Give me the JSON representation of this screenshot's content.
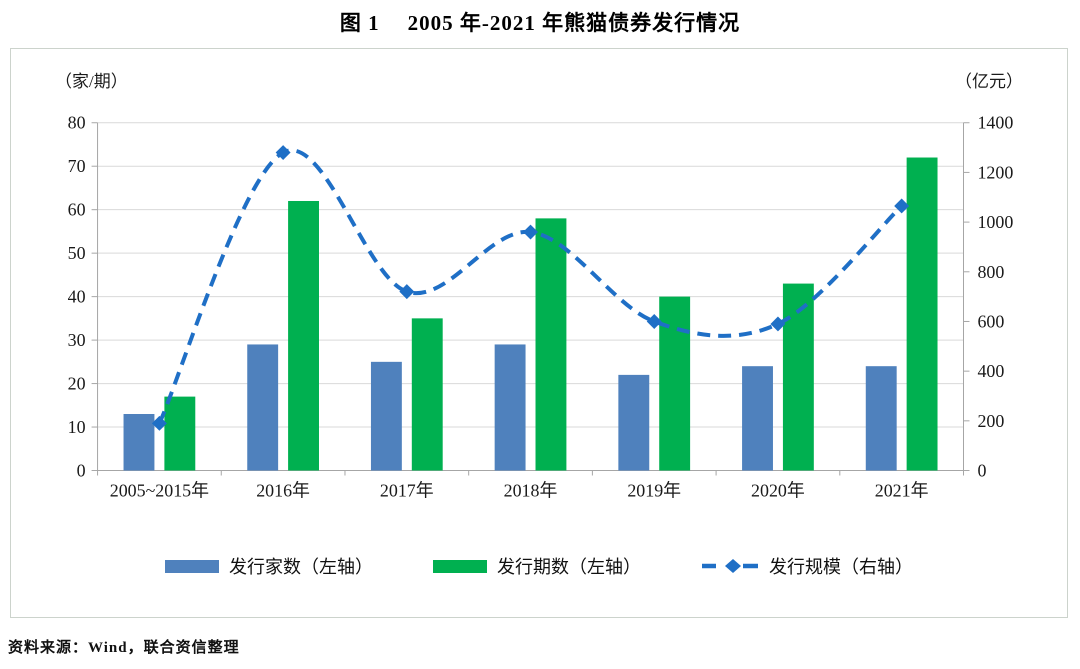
{
  "title": {
    "label": "图 1",
    "text": "2005 年-2021 年熊猫债券发行情况"
  },
  "footer": {
    "source": "资料来源：Wind，联合资信整理"
  },
  "legend": [
    {
      "label": "发行家数（左轴）",
      "type": "bar",
      "color": "#4F81BD"
    },
    {
      "label": "发行期数（左轴）",
      "type": "bar",
      "color": "#00B050"
    },
    {
      "label": "发行规模（右轴）",
      "type": "line",
      "color": "#1F6FC6"
    }
  ],
  "colors": {
    "bar_issuers": "#4F81BD",
    "bar_issues": "#00B050",
    "line_scale": "#1F6FC6",
    "gridline": "#D9D9D9",
    "axis": "#A6A6A6",
    "tick_text": "#1a1a1a",
    "box_border": "#ccd3cc"
  },
  "chart_data": {
    "type": "bar",
    "subtype": "bar+line combo, dual axis",
    "title": "图 1 2005 年-2021 年熊猫债券发行情况",
    "categories": [
      "2005~2015年",
      "2016年",
      "2017年",
      "2018年",
      "2019年",
      "2020年",
      "2021年"
    ],
    "series": [
      {
        "name": "发行家数（左轴）",
        "type": "bar",
        "axis": "left",
        "color": "#4F81BD",
        "values": [
          13,
          29,
          25,
          29,
          22,
          24,
          24
        ]
      },
      {
        "name": "发行期数（左轴）",
        "type": "bar",
        "axis": "left",
        "color": "#00B050",
        "values": [
          17,
          62,
          35,
          58,
          40,
          43,
          72
        ]
      },
      {
        "name": "发行规模（右轴）",
        "type": "line",
        "axis": "right",
        "color": "#1F6FC6",
        "line_style": "dashed",
        "marker": "diamond",
        "smooth": true,
        "values": [
          190,
          1280,
          720,
          960,
          600,
          590,
          1065
        ]
      }
    ],
    "left_axis": {
      "unit": "（家/期）",
      "min": 0,
      "max": 80,
      "step": 10,
      "ticks": [
        0,
        10,
        20,
        30,
        40,
        50,
        60,
        70,
        80
      ]
    },
    "right_axis": {
      "unit": "（亿元）",
      "min": 0,
      "max": 1400,
      "step": 200,
      "ticks": [
        0,
        200,
        400,
        600,
        800,
        1000,
        1200,
        1400
      ]
    },
    "grid": true,
    "legend_position": "bottom"
  }
}
